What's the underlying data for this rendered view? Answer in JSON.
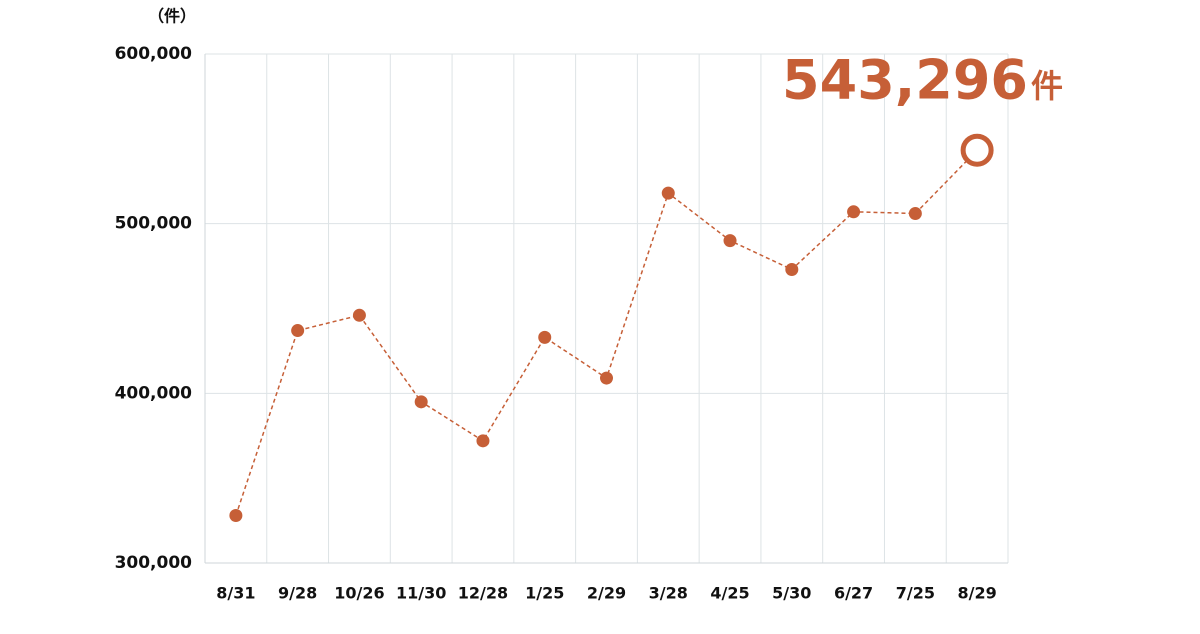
{
  "chart_data": {
    "type": "line",
    "y_unit": "（件）",
    "categories": [
      "8/31",
      "9/28",
      "10/26",
      "11/30",
      "12/28",
      "1/25",
      "2/29",
      "3/28",
      "4/25",
      "5/30",
      "6/27",
      "7/25",
      "8/29"
    ],
    "series": [
      {
        "color": "#c65f37",
        "values": [
          328000,
          437000,
          446000,
          395000,
          372000,
          433000,
          409000,
          518000,
          490000,
          473000,
          507000,
          506000,
          543296
        ],
        "value_labels": [
          null,
          null,
          null,
          null,
          null,
          null,
          null,
          null,
          null,
          null,
          null,
          null,
          "543,296"
        ],
        "value_unit": "件"
      }
    ],
    "ylim": [
      300000,
      600000
    ],
    "yticks": [
      {
        "value": 300000,
        "label": "300,000"
      },
      {
        "value": 400000,
        "label": "400,000"
      },
      {
        "value": 500000,
        "label": "500,000"
      },
      {
        "value": 600000,
        "label": "600,000"
      }
    ],
    "grid": true
  }
}
